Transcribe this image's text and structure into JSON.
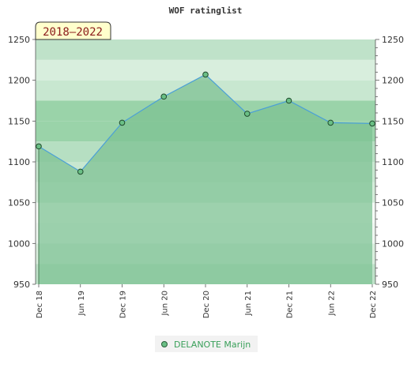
{
  "chart_data": {
    "type": "area",
    "title": "WOF ratinglist",
    "period_label": "2018–2022",
    "x": [
      "Dec 18",
      "Jun 19",
      "Dec 19",
      "Jun 20",
      "Dec 20",
      "Jun 21",
      "Dec 21",
      "Jun 22",
      "Dec 22"
    ],
    "series": [
      {
        "name": "DELANOTE Marijn",
        "values": [
          1119,
          1088,
          1148,
          1180,
          1207,
          1159,
          1175,
          1148,
          1147
        ]
      }
    ],
    "ylim": [
      950,
      1250
    ],
    "yticks": [
      950,
      1000,
      1050,
      1100,
      1150,
      1200,
      1250
    ],
    "y_axis_sides": [
      "left",
      "right"
    ],
    "legend_position": "bottom-center",
    "grid": false,
    "colors": {
      "line": "#4a9fd8",
      "fill": "#7cc191",
      "marker": "#6abf85",
      "period_box_bg": "#ffffcc",
      "legend_text": "#3aa05a"
    }
  }
}
